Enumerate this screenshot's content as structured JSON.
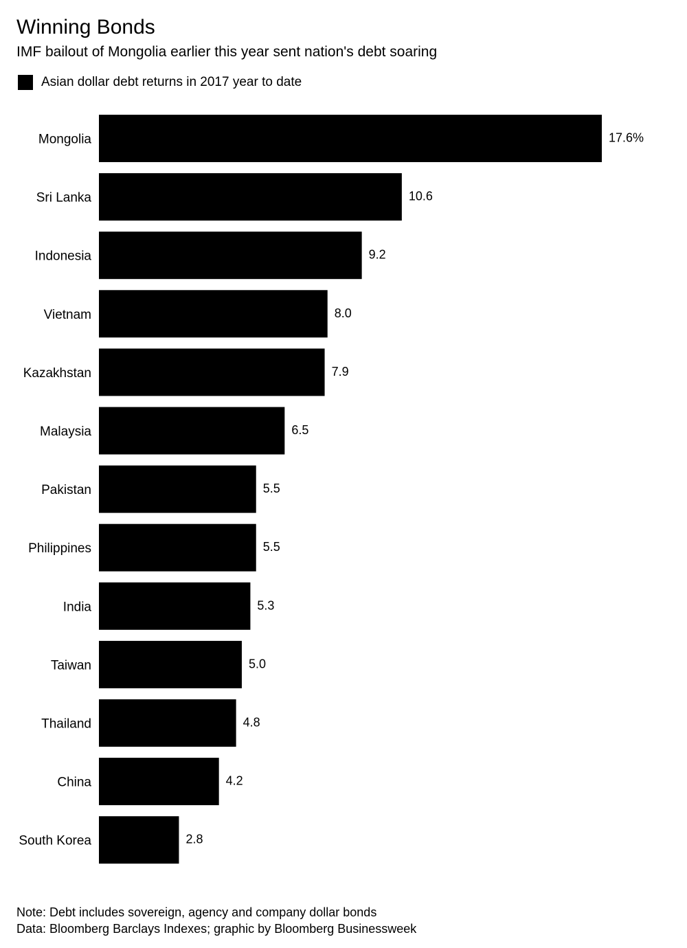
{
  "header": {
    "title": "Winning Bonds",
    "subtitle": "IMF bailout of Mongolia earlier this year sent nation's debt soaring"
  },
  "chart_data": {
    "type": "bar",
    "orientation": "horizontal",
    "title": "Winning Bonds",
    "subtitle": "IMF bailout of Mongolia earlier this year sent nation's debt soaring",
    "xlabel": "",
    "ylabel": "",
    "grid": false,
    "legend": "top-left",
    "categories": [
      "Mongolia",
      "Sri Lanka",
      "Indonesia",
      "Vietnam",
      "Kazakhstan",
      "Malaysia",
      "Pakistan",
      "Philippines",
      "India",
      "Taiwan",
      "Thailand",
      "China",
      "South Korea"
    ],
    "series": [
      {
        "name": "Asian dollar debt returns in 2017 year to date",
        "color": "#000000",
        "values": [
          17.6,
          10.6,
          9.2,
          8.0,
          7.9,
          6.5,
          5.5,
          5.5,
          5.3,
          5.0,
          4.8,
          4.2,
          2.8
        ]
      }
    ],
    "value_labels": [
      "17.6%",
      "10.6",
      "9.2",
      "8.0",
      "7.9",
      "6.5",
      "5.5",
      "5.5",
      "5.3",
      "5.0",
      "4.8",
      "4.2",
      "2.8"
    ],
    "xlim": [
      0,
      17.6
    ]
  },
  "footer": {
    "note": "Note: Debt includes sovereign, agency and company dollar bonds",
    "source": "Data: Bloomberg Barclays Indexes; graphic by Bloomberg Businessweek"
  }
}
